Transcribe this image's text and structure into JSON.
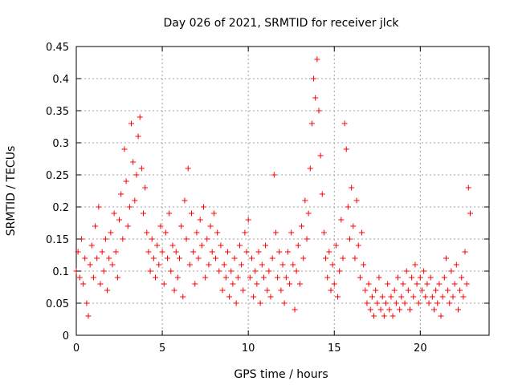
{
  "chart_data": {
    "type": "scatter",
    "title": "Day 026 of 2021, SRMTID for receiver jlck",
    "xlabel": "GPS time / hours",
    "ylabel": "SRMTID / TECUs",
    "xlim": [
      0,
      24
    ],
    "ylim": [
      0,
      0.45
    ],
    "x_ticks": [
      0,
      5,
      10,
      15,
      20
    ],
    "x_tick_labels": [
      "0",
      "5",
      "10",
      "15",
      "20"
    ],
    "y_ticks": [
      0,
      0.05,
      0.1,
      0.15,
      0.2,
      0.25,
      0.3,
      0.35,
      0.4,
      0.45
    ],
    "y_tick_labels": [
      "0",
      "0.05",
      "0.1",
      "0.15",
      "0.2",
      "0.25",
      "0.3",
      "0.35",
      "0.4",
      "0.45"
    ],
    "grid": true,
    "marker": "+",
    "color": "#ff0000",
    "series": [
      {
        "name": "SRMTID",
        "points": [
          [
            0.0,
            0.1
          ],
          [
            0.1,
            0.13
          ],
          [
            0.2,
            0.09
          ],
          [
            0.3,
            0.15
          ],
          [
            0.4,
            0.08
          ],
          [
            0.5,
            0.12
          ],
          [
            0.6,
            0.05
          ],
          [
            0.7,
            0.03
          ],
          [
            0.8,
            0.11
          ],
          [
            0.9,
            0.14
          ],
          [
            1.0,
            0.09
          ],
          [
            1.1,
            0.17
          ],
          [
            1.2,
            0.12
          ],
          [
            1.3,
            0.2
          ],
          [
            1.4,
            0.08
          ],
          [
            1.5,
            0.13
          ],
          [
            1.6,
            0.1
          ],
          [
            1.7,
            0.15
          ],
          [
            1.8,
            0.07
          ],
          [
            1.9,
            0.12
          ],
          [
            2.0,
            0.16
          ],
          [
            2.1,
            0.11
          ],
          [
            2.2,
            0.19
          ],
          [
            2.3,
            0.13
          ],
          [
            2.4,
            0.09
          ],
          [
            2.5,
            0.18
          ],
          [
            2.6,
            0.22
          ],
          [
            2.7,
            0.15
          ],
          [
            2.8,
            0.29
          ],
          [
            2.9,
            0.24
          ],
          [
            3.0,
            0.17
          ],
          [
            3.1,
            0.2
          ],
          [
            3.2,
            0.33
          ],
          [
            3.3,
            0.27
          ],
          [
            3.4,
            0.21
          ],
          [
            3.5,
            0.25
          ],
          [
            3.6,
            0.31
          ],
          [
            3.7,
            0.34
          ],
          [
            3.8,
            0.26
          ],
          [
            3.9,
            0.19
          ],
          [
            4.0,
            0.23
          ],
          [
            4.1,
            0.16
          ],
          [
            4.2,
            0.13
          ],
          [
            4.3,
            0.1
          ],
          [
            4.4,
            0.15
          ],
          [
            4.5,
            0.12
          ],
          [
            4.6,
            0.09
          ],
          [
            4.7,
            0.14
          ],
          [
            4.8,
            0.11
          ],
          [
            4.9,
            0.17
          ],
          [
            5.0,
            0.13
          ],
          [
            5.1,
            0.08
          ],
          [
            5.2,
            0.16
          ],
          [
            5.3,
            0.12
          ],
          [
            5.4,
            0.19
          ],
          [
            5.5,
            0.1
          ],
          [
            5.6,
            0.14
          ],
          [
            5.7,
            0.07
          ],
          [
            5.8,
            0.13
          ],
          [
            5.9,
            0.09
          ],
          [
            6.0,
            0.12
          ],
          [
            6.1,
            0.17
          ],
          [
            6.2,
            0.06
          ],
          [
            6.3,
            0.21
          ],
          [
            6.4,
            0.15
          ],
          [
            6.5,
            0.26
          ],
          [
            6.6,
            0.11
          ],
          [
            6.7,
            0.19
          ],
          [
            6.8,
            0.13
          ],
          [
            6.9,
            0.08
          ],
          [
            7.0,
            0.16
          ],
          [
            7.1,
            0.12
          ],
          [
            7.2,
            0.18
          ],
          [
            7.3,
            0.14
          ],
          [
            7.4,
            0.2
          ],
          [
            7.5,
            0.09
          ],
          [
            7.6,
            0.15
          ],
          [
            7.7,
            0.11
          ],
          [
            7.8,
            0.17
          ],
          [
            7.9,
            0.13
          ],
          [
            8.0,
            0.19
          ],
          [
            8.1,
            0.12
          ],
          [
            8.2,
            0.16
          ],
          [
            8.3,
            0.1
          ],
          [
            8.4,
            0.14
          ],
          [
            8.5,
            0.07
          ],
          [
            8.6,
            0.11
          ],
          [
            8.7,
            0.09
          ],
          [
            8.8,
            0.13
          ],
          [
            8.9,
            0.06
          ],
          [
            9.0,
            0.1
          ],
          [
            9.1,
            0.08
          ],
          [
            9.2,
            0.12
          ],
          [
            9.3,
            0.05
          ],
          [
            9.4,
            0.09
          ],
          [
            9.5,
            0.14
          ],
          [
            9.6,
            0.11
          ],
          [
            9.7,
            0.07
          ],
          [
            9.8,
            0.16
          ],
          [
            9.9,
            0.13
          ],
          [
            10.0,
            0.18
          ],
          [
            10.1,
            0.09
          ],
          [
            10.2,
            0.12
          ],
          [
            10.3,
            0.06
          ],
          [
            10.4,
            0.1
          ],
          [
            10.5,
            0.08
          ],
          [
            10.6,
            0.13
          ],
          [
            10.7,
            0.05
          ],
          [
            10.8,
            0.11
          ],
          [
            10.9,
            0.09
          ],
          [
            11.0,
            0.14
          ],
          [
            11.1,
            0.07
          ],
          [
            11.2,
            0.1
          ],
          [
            11.3,
            0.06
          ],
          [
            11.4,
            0.12
          ],
          [
            11.5,
            0.25
          ],
          [
            11.6,
            0.16
          ],
          [
            11.7,
            0.09
          ],
          [
            11.8,
            0.13
          ],
          [
            11.9,
            0.07
          ],
          [
            12.0,
            0.11
          ],
          [
            12.1,
            0.05
          ],
          [
            12.2,
            0.09
          ],
          [
            12.3,
            0.13
          ],
          [
            12.4,
            0.08
          ],
          [
            12.5,
            0.16
          ],
          [
            12.6,
            0.11
          ],
          [
            12.7,
            0.04
          ],
          [
            12.8,
            0.1
          ],
          [
            12.9,
            0.14
          ],
          [
            13.0,
            0.08
          ],
          [
            13.1,
            0.17
          ],
          [
            13.2,
            0.12
          ],
          [
            13.3,
            0.21
          ],
          [
            13.4,
            0.15
          ],
          [
            13.5,
            0.19
          ],
          [
            13.6,
            0.26
          ],
          [
            13.7,
            0.33
          ],
          [
            13.8,
            0.4
          ],
          [
            13.9,
            0.37
          ],
          [
            14.0,
            0.43
          ],
          [
            14.1,
            0.35
          ],
          [
            14.2,
            0.28
          ],
          [
            14.3,
            0.22
          ],
          [
            14.4,
            0.16
          ],
          [
            14.5,
            0.12
          ],
          [
            14.6,
            0.09
          ],
          [
            14.7,
            0.13
          ],
          [
            14.8,
            0.07
          ],
          [
            14.9,
            0.11
          ],
          [
            15.0,
            0.08
          ],
          [
            15.1,
            0.14
          ],
          [
            15.2,
            0.06
          ],
          [
            15.3,
            0.1
          ],
          [
            15.4,
            0.18
          ],
          [
            15.5,
            0.12
          ],
          [
            15.6,
            0.33
          ],
          [
            15.7,
            0.29
          ],
          [
            15.8,
            0.2
          ],
          [
            15.9,
            0.15
          ],
          [
            16.0,
            0.23
          ],
          [
            16.1,
            0.17
          ],
          [
            16.2,
            0.12
          ],
          [
            16.3,
            0.21
          ],
          [
            16.4,
            0.14
          ],
          [
            16.5,
            0.09
          ],
          [
            16.6,
            0.16
          ],
          [
            16.7,
            0.11
          ],
          [
            16.8,
            0.07
          ],
          [
            16.9,
            0.05
          ],
          [
            17.0,
            0.08
          ],
          [
            17.1,
            0.04
          ],
          [
            17.2,
            0.06
          ],
          [
            17.3,
            0.03
          ],
          [
            17.4,
            0.07
          ],
          [
            17.5,
            0.05
          ],
          [
            17.6,
            0.09
          ],
          [
            17.7,
            0.04
          ],
          [
            17.8,
            0.06
          ],
          [
            17.9,
            0.03
          ],
          [
            18.0,
            0.05
          ],
          [
            18.1,
            0.08
          ],
          [
            18.2,
            0.04
          ],
          [
            18.3,
            0.06
          ],
          [
            18.4,
            0.03
          ],
          [
            18.5,
            0.07
          ],
          [
            18.6,
            0.05
          ],
          [
            18.7,
            0.09
          ],
          [
            18.8,
            0.04
          ],
          [
            18.9,
            0.06
          ],
          [
            19.0,
            0.08
          ],
          [
            19.1,
            0.05
          ],
          [
            19.2,
            0.1
          ],
          [
            19.3,
            0.07
          ],
          [
            19.4,
            0.04
          ],
          [
            19.5,
            0.09
          ],
          [
            19.6,
            0.06
          ],
          [
            19.7,
            0.11
          ],
          [
            19.8,
            0.08
          ],
          [
            19.9,
            0.05
          ],
          [
            20.0,
            0.09
          ],
          [
            20.1,
            0.07
          ],
          [
            20.2,
            0.1
          ],
          [
            20.3,
            0.06
          ],
          [
            20.4,
            0.08
          ],
          [
            20.5,
            0.05
          ],
          [
            20.6,
            0.09
          ],
          [
            20.7,
            0.06
          ],
          [
            20.8,
            0.04
          ],
          [
            20.9,
            0.07
          ],
          [
            21.0,
            0.05
          ],
          [
            21.1,
            0.08
          ],
          [
            21.2,
            0.03
          ],
          [
            21.3,
            0.06
          ],
          [
            21.4,
            0.09
          ],
          [
            21.5,
            0.12
          ],
          [
            21.6,
            0.07
          ],
          [
            21.7,
            0.05
          ],
          [
            21.8,
            0.1
          ],
          [
            21.9,
            0.06
          ],
          [
            22.0,
            0.08
          ],
          [
            22.1,
            0.11
          ],
          [
            22.2,
            0.04
          ],
          [
            22.3,
            0.07
          ],
          [
            22.4,
            0.09
          ],
          [
            22.5,
            0.06
          ],
          [
            22.6,
            0.13
          ],
          [
            22.7,
            0.08
          ],
          [
            22.8,
            0.23
          ],
          [
            22.9,
            0.19
          ]
        ]
      }
    ]
  }
}
